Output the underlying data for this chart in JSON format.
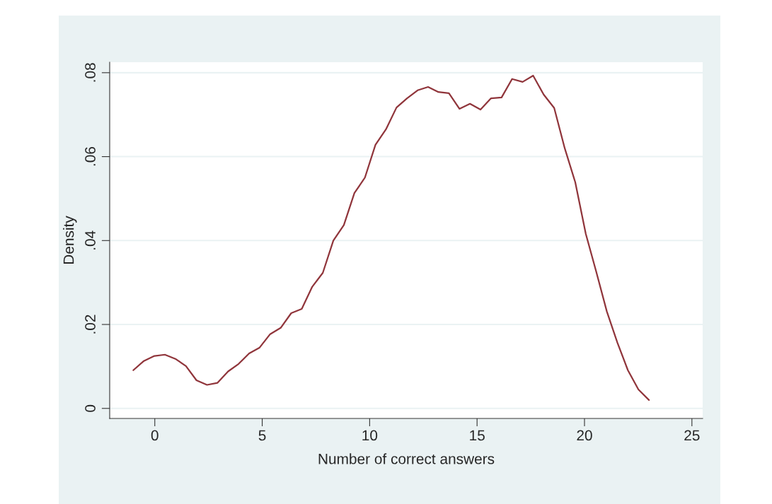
{
  "chart_data": {
    "type": "line",
    "xlabel": "Number of correct answers",
    "ylabel": "Density",
    "x": [
      -1,
      -0.51,
      -0.02,
      0.47,
      0.96,
      1.45,
      1.94,
      2.43,
      2.92,
      3.41,
      3.9,
      4.39,
      4.88,
      5.37,
      5.86,
      6.35,
      6.84,
      7.33,
      7.82,
      8.31,
      8.8,
      9.29,
      9.78,
      10.27,
      10.76,
      11.25,
      11.74,
      12.23,
      12.72,
      13.2,
      13.69,
      14.18,
      14.67,
      15.16,
      15.65,
      16.14,
      16.63,
      17.12,
      17.61,
      18.1,
      18.59,
      19.08,
      19.57,
      20.06,
      20.55,
      21.04,
      21.53,
      22.02,
      22.51,
      23
    ],
    "series": [
      {
        "color": "#90353b",
        "values": [
          0.0091,
          0.0113,
          0.0125,
          0.0128,
          0.0118,
          0.0101,
          0.0067,
          0.0056,
          0.0061,
          0.0088,
          0.0106,
          0.0131,
          0.0145,
          0.0177,
          0.0192,
          0.0227,
          0.0237,
          0.029,
          0.0323,
          0.04,
          0.0437,
          0.0513,
          0.055,
          0.0628,
          0.0665,
          0.0717,
          0.0739,
          0.0758,
          0.0766,
          0.0754,
          0.0751,
          0.0714,
          0.0726,
          0.0712,
          0.0739,
          0.0741,
          0.0785,
          0.0778,
          0.0793,
          0.0748,
          0.0716,
          0.062,
          0.0539,
          0.0416,
          0.0325,
          0.0231,
          0.0157,
          0.0091,
          0.0045,
          0.002
        ]
      }
    ],
    "xlim": [
      -2.1,
      25.5
    ],
    "ylim": [
      -0.0024,
      0.0825
    ],
    "xticks": [
      0,
      5,
      10,
      15,
      20,
      25
    ],
    "yticks": [
      {
        "value": 0,
        "label": "0"
      },
      {
        "value": 0.02,
        "label": ".02"
      },
      {
        "value": 0.04,
        "label": ".04"
      },
      {
        "value": 0.06,
        "label": ".06"
      },
      {
        "value": 0.08,
        "label": ".08"
      }
    ],
    "grid": "y",
    "legend": false
  }
}
